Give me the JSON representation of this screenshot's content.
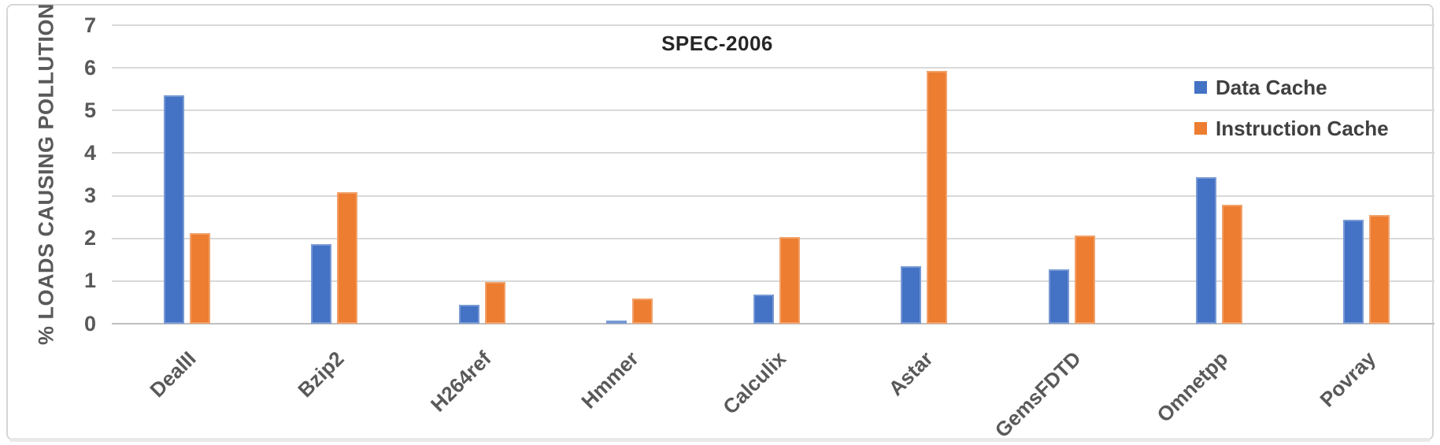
{
  "window": {
    "background": "#ffffff",
    "frame_color": "#d6d6d6"
  },
  "chart_data": {
    "type": "bar",
    "title": "SPEC-2006",
    "xlabel": "",
    "ylabel": "% LOADS CAUSING POLLUTION",
    "ylim": [
      0,
      7
    ],
    "yticks": [
      0,
      1,
      2,
      3,
      4,
      5,
      6,
      7
    ],
    "grid": true,
    "legend_position": "top-right-inside",
    "categories": [
      "DealII",
      "Bzip2",
      "H264ref",
      "Hmmer",
      "Calculix",
      "Astar",
      "GemsFDTD",
      "Omnetpp",
      "Povray"
    ],
    "series": [
      {
        "name": "Data Cache",
        "color": "#4472C4",
        "values": [
          5.36,
          1.86,
          0.44,
          0.07,
          0.68,
          1.35,
          1.27,
          3.43,
          2.43
        ]
      },
      {
        "name": "Instruction Cache",
        "color": "#ED7D31",
        "values": [
          2.12,
          3.09,
          0.97,
          0.59,
          2.04,
          5.93,
          2.06,
          2.78,
          2.54
        ]
      }
    ]
  }
}
